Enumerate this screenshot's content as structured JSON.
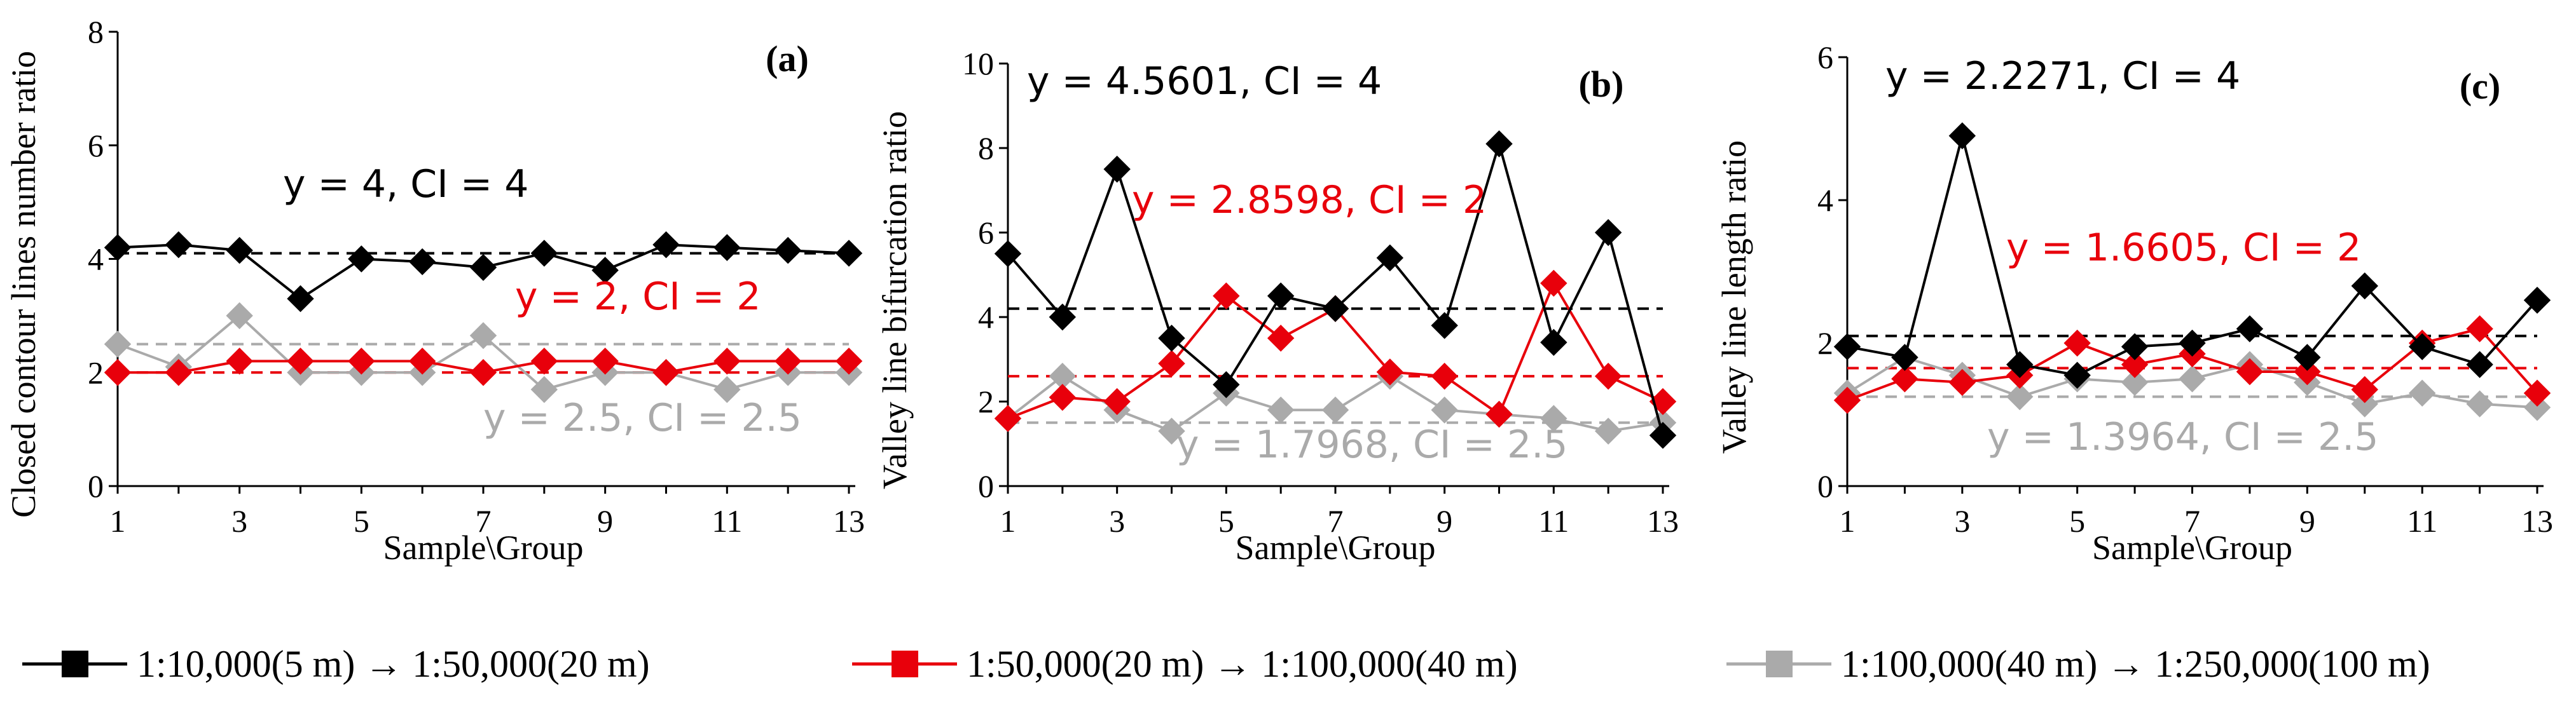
{
  "chart_data": [
    {
      "type": "line",
      "panel": "(a)",
      "xlabel": "Sample\\Group",
      "ylabel": "Closed contour lines number ratio",
      "ylim": [
        0,
        8
      ],
      "yticks": [
        "0",
        "2",
        "4",
        "6",
        "8"
      ],
      "x": [
        1,
        2,
        3,
        4,
        5,
        6,
        7,
        8,
        9,
        10,
        11,
        12,
        13
      ],
      "xticks": [
        "1",
        "3",
        "5",
        "7",
        "9",
        "11",
        "13"
      ],
      "series": [
        {
          "name": "1:10,000(5 m) → 1:50,000(20 m)",
          "color": "#000000",
          "values": [
            4.2,
            4.25,
            4.15,
            3.3,
            4.0,
            3.95,
            3.85,
            4.1,
            3.8,
            4.25,
            4.2,
            4.15,
            4.1
          ]
        },
        {
          "name": "1:50,000(20 m) → 1:100,000(40 m)",
          "color": "#e8000b",
          "values": [
            2.0,
            2.0,
            2.2,
            2.2,
            2.2,
            2.2,
            2.0,
            2.2,
            2.2,
            2.0,
            2.2,
            2.2,
            2.2
          ]
        },
        {
          "name": "1:100,000(40 m) → 1:250,000(100 m)",
          "color": "#aaaaaa",
          "values": [
            2.5,
            2.1,
            3.0,
            2.0,
            2.0,
            2.0,
            2.65,
            1.7,
            2.0,
            2.0,
            1.7,
            2.0,
            2.0
          ]
        }
      ],
      "reference_lines": [
        4.1,
        2.0,
        2.5
      ],
      "annotations": [
        {
          "text": "y = 4, CI = 4",
          "color": "#000000"
        },
        {
          "text": "y = 2, CI = 2",
          "color": "#e8000b"
        },
        {
          "text": "y = 2.5, CI = 2.5",
          "color": "#aaaaaa"
        }
      ]
    },
    {
      "type": "line",
      "panel": "(b)",
      "xlabel": "Sample\\Group",
      "ylabel": "Valley line bifurcation ratio",
      "ylim": [
        0,
        10
      ],
      "yticks": [
        "0",
        "2",
        "4",
        "6",
        "8",
        "10"
      ],
      "x": [
        1,
        2,
        3,
        4,
        5,
        6,
        7,
        8,
        9,
        10,
        11,
        12,
        13
      ],
      "xticks": [
        "1",
        "3",
        "5",
        "7",
        "9",
        "11",
        "13"
      ],
      "series": [
        {
          "name": "1:10,000(5 m) → 1:50,000(20 m)",
          "color": "#000000",
          "values": [
            5.5,
            4.0,
            7.5,
            3.5,
            2.4,
            4.5,
            4.2,
            5.4,
            3.8,
            8.1,
            3.4,
            6.0,
            1.2
          ]
        },
        {
          "name": "1:50,000(20 m) → 1:100,000(40 m)",
          "color": "#e8000b",
          "values": [
            1.6,
            2.1,
            2.0,
            2.9,
            4.5,
            3.5,
            4.2,
            2.7,
            2.6,
            1.7,
            4.8,
            2.6,
            2.0
          ]
        },
        {
          "name": "1:100,000(40 m) → 1:250,000(100 m)",
          "color": "#aaaaaa",
          "values": [
            1.6,
            2.6,
            1.8,
            1.3,
            2.2,
            1.8,
            1.8,
            2.6,
            1.8,
            1.7,
            1.6,
            1.3,
            1.5
          ]
        }
      ],
      "reference_lines": [
        4.2,
        2.6,
        1.5
      ],
      "annotations": [
        {
          "text": "y = 4.5601, CI = 4",
          "color": "#000000"
        },
        {
          "text": "y = 2.8598, CI = 2",
          "color": "#e8000b"
        },
        {
          "text": "y = 1.7968, CI = 2.5",
          "color": "#aaaaaa"
        }
      ]
    },
    {
      "type": "line",
      "panel": "(c)",
      "xlabel": "Sample\\Group",
      "ylabel": "Valley line length ratio",
      "ylim": [
        0,
        6
      ],
      "yticks": [
        "0",
        "2",
        "4",
        "6"
      ],
      "x": [
        1,
        2,
        3,
        4,
        5,
        6,
        7,
        8,
        9,
        10,
        11,
        12,
        13
      ],
      "xticks": [
        "1",
        "3",
        "5",
        "7",
        "9",
        "11",
        "13"
      ],
      "series": [
        {
          "name": "1:10,000(5 m) → 1:50,000(20 m)",
          "color": "#000000",
          "values": [
            1.95,
            1.8,
            4.9,
            1.7,
            1.55,
            1.95,
            2.0,
            2.2,
            1.8,
            2.8,
            1.95,
            1.7,
            2.6
          ]
        },
        {
          "name": "1:50,000(20 m) → 1:100,000(40 m)",
          "color": "#e8000b",
          "values": [
            1.2,
            1.5,
            1.45,
            1.55,
            2.0,
            1.7,
            1.85,
            1.6,
            1.6,
            1.35,
            2.0,
            2.2,
            1.3
          ]
        },
        {
          "name": "1:100,000(40 m) → 1:250,000(100 m)",
          "color": "#aaaaaa",
          "values": [
            1.3,
            1.8,
            1.55,
            1.25,
            1.5,
            1.45,
            1.5,
            1.7,
            1.45,
            1.15,
            1.3,
            1.15,
            1.1
          ]
        }
      ],
      "reference_lines": [
        2.1,
        1.65,
        1.25
      ],
      "annotations": [
        {
          "text": "y = 2.2271, CI = 4",
          "color": "#000000"
        },
        {
          "text": "y = 1.6605, CI = 2",
          "color": "#e8000b"
        },
        {
          "text": "y = 1.3964, CI = 2.5",
          "color": "#aaaaaa"
        }
      ]
    }
  ],
  "legend": [
    {
      "label": "1:10,000(5 m) → 1:50,000(20 m)",
      "color": "#000000"
    },
    {
      "label": "1:50,000(20 m) → 1:100,000(40 m)",
      "color": "#e8000b"
    },
    {
      "label": "1:100,000(40 m) → 1:250,000(100 m)",
      "color": "#aaaaaa"
    }
  ]
}
